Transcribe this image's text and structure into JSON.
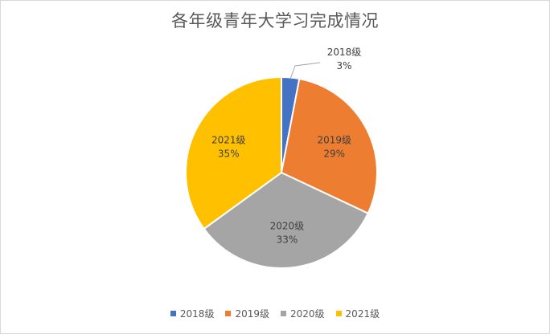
{
  "chart_data": {
    "type": "pie",
    "title": "各年级青年大学习完成情况",
    "categories": [
      "2018级",
      "2019级",
      "2020级",
      "2021级"
    ],
    "values": [
      3,
      29,
      33,
      35
    ],
    "labels": [
      "3%",
      "29%",
      "33%",
      "35%"
    ],
    "colors": [
      "#4472c4",
      "#ed7d31",
      "#a5a5a5",
      "#ffc000"
    ],
    "legend_position": "bottom",
    "data_labels": "category name and percentage"
  }
}
